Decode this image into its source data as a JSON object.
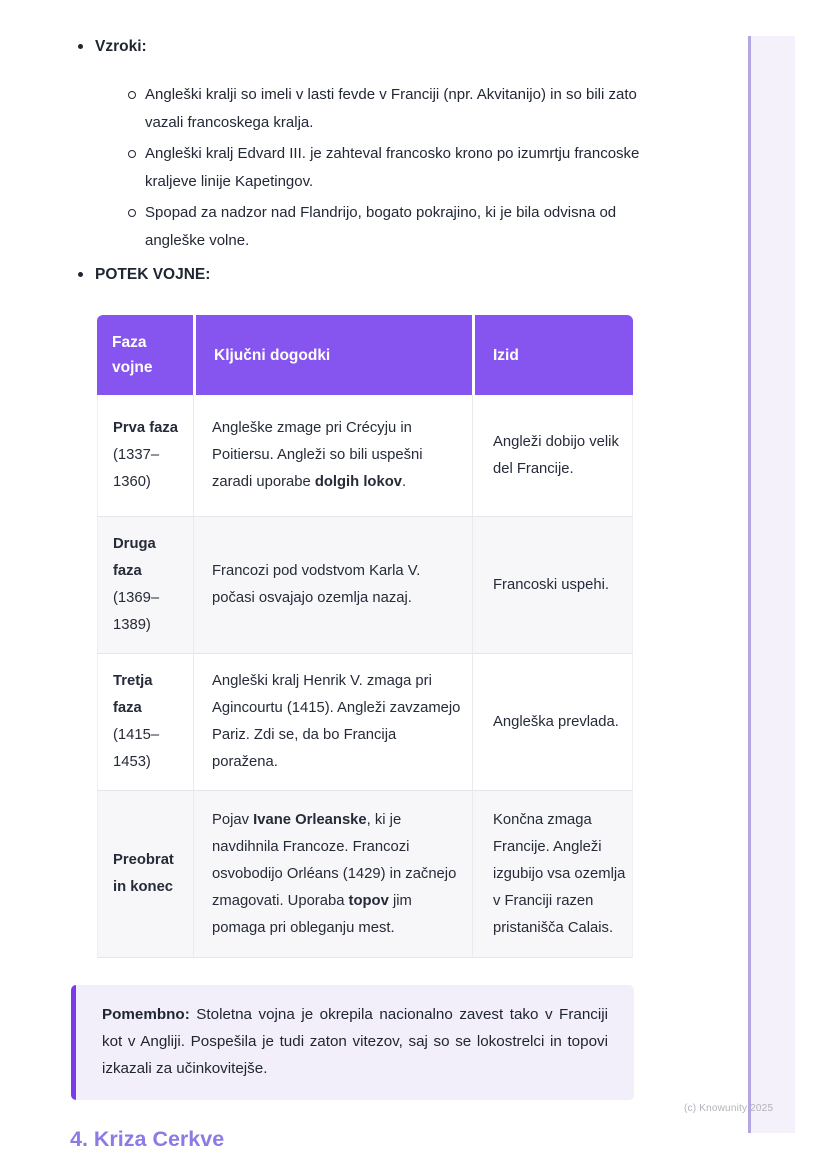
{
  "colors": {
    "table_header_bg": "#8655f0",
    "note_bar": "#7c3aed",
    "note_bg": "#f2eefa",
    "heading_purple": "#8c7ae6",
    "strip_bg": "#f4f1fa",
    "strip_line": "#b3a6e2",
    "body_text": "#212733"
  },
  "bullets": {
    "vzroki_label": "Vzroki:",
    "causes": [
      "Angleški kralji so imeli v lasti fevde v Franciji (npr. Akvitanijo) in so bili zato vazali francoskega kralja.",
      "Angleški kralj Edvard III. je zahteval francosko krono po izumrtju francoske kraljeve linije Kapetingov.",
      "Spopad za nadzor nad Flandrijo, bogato pokrajino, ki je bila odvisna od angleške volne."
    ],
    "potek_label": "POTEK VOJNE:"
  },
  "table": {
    "headers": [
      "Faza vojne",
      "Ključni dogodki",
      "Izid"
    ],
    "rows": [
      {
        "phase_name": "Prva faza",
        "phase_dates": "(1337–1360)",
        "events": "Angleške zmage pri Crécyju in Poitiersu. Angleži so bili uspešni zaradi uporabe **dolgih lokov**.",
        "outcome": "Angleži dobijo velik del Francije."
      },
      {
        "phase_name": "Druga faza",
        "phase_dates": "(1369–1389)",
        "events": "Francozi pod vodstvom Karla V. počasi osvajajo ozemlja nazaj.",
        "outcome": "Francoski uspehi."
      },
      {
        "phase_name": "Tretja faza",
        "phase_dates": "(1415–1453)",
        "events": "Angleški kralj Henrik V. zmaga pri Agincourtu (1415). Angleži zavzamejo Pariz. Zdi se, da bo Francija poražena.",
        "outcome": "Angleška prevlada."
      },
      {
        "phase_name": "Preobrat in konec",
        "phase_dates": "",
        "events": "Pojav **Ivane Orleanske**, ki je navdihnila Francoze. Francozi osvobodijo Orléans (1429) in začnejo zmagovati. Uporaba **topov** jim pomaga pri obleganju mest.",
        "outcome": "Končna zmaga Francije. Angleži izgubijo vsa ozemlja v Franciji razen pristanišča Calais."
      }
    ]
  },
  "note": {
    "text": "**Pomembno:** Stoletna vojna je okrepila nacionalno zavest tako v Franciji kot v Angliji. Pospešila je tudi zaton vitezov, saj so se lokostrelci in topovi izkazali za učinkovitejše."
  },
  "next_section": {
    "title": "4. Kriza Cerkve"
  },
  "footer": {
    "credit": "(c) Knowunity 2025"
  }
}
